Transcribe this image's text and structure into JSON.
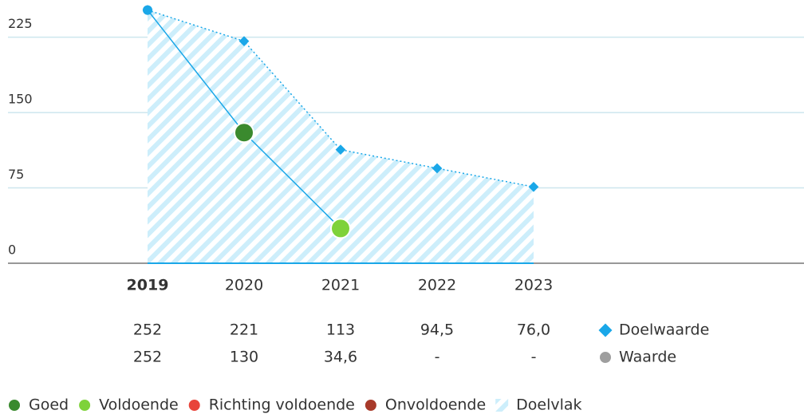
{
  "chart_data": {
    "type": "line",
    "categories": [
      "2019",
      "2020",
      "2021",
      "2022",
      "2023"
    ],
    "bold_category": "2019",
    "ylim": [
      0,
      262
    ],
    "yticks": [
      0,
      75,
      150,
      225
    ],
    "grid": true,
    "series": [
      {
        "name": "Doelwaarde",
        "color": "#1aa7e8",
        "marker": "diamond",
        "line_style": "dotted",
        "area": true,
        "values": [
          252,
          221,
          113,
          94.5,
          76.0
        ],
        "value_labels": [
          "252",
          "221",
          "113",
          "94,5",
          "76,0"
        ]
      },
      {
        "name": "Waarde",
        "color": "#9e9e9e",
        "line_color": "#1aa7e8",
        "marker": "circle",
        "line_style": "solid",
        "values": [
          252,
          130,
          34.6,
          null,
          null
        ],
        "value_labels": [
          "252",
          "130",
          "34,6",
          "-",
          "-"
        ],
        "point_colors": [
          "#1aa7e8",
          "#3a8a2e",
          "#7ed23a",
          null,
          null
        ]
      }
    ],
    "status_legend": [
      {
        "name": "Goed",
        "color": "#3a8a2e"
      },
      {
        "name": "Voldoende",
        "color": "#7ed23a"
      },
      {
        "name": "Richting voldoende",
        "color": "#e8443a"
      },
      {
        "name": "Onvoldoende",
        "color": "#a83a2a"
      },
      {
        "name": "Doelvlak",
        "color": "#bfe6f8",
        "pattern": "hatch"
      }
    ]
  }
}
